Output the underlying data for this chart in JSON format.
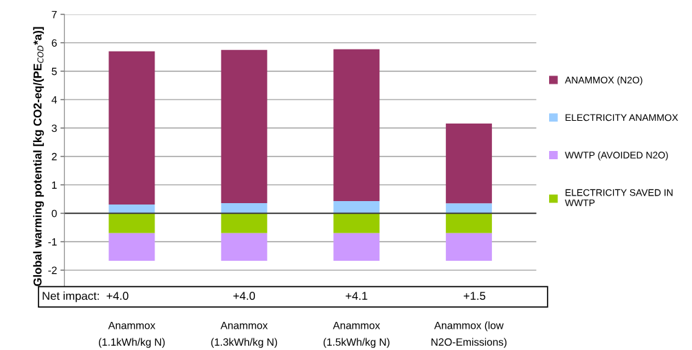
{
  "chart_data": {
    "type": "bar",
    "stacked": true,
    "ylabel": "Global warming potential [kg CO2-eq/(PE$_{COD}$*a)]",
    "categories": [
      "Anammox\n(1.1kWh/kg N)",
      "Anammox\n(1.3kWh/kg N)",
      "Anammox\n(1.5kWh/kg N)",
      "Anammox (low\nN2O-Emissions)"
    ],
    "series": [
      {
        "name": "ELECTRICITY ANAMMOX",
        "color": "#99ccff",
        "values": [
          0.31,
          0.36,
          0.43,
          0.35
        ]
      },
      {
        "name": "ANAMMOX (N2O)",
        "color": "#993366",
        "values": [
          5.39,
          5.39,
          5.34,
          2.81
        ]
      },
      {
        "name": "ELECTRICITY SAVED IN WWTP",
        "color": "#99cc00",
        "values": [
          -0.7,
          -0.7,
          -0.7,
          -0.7
        ]
      },
      {
        "name": "WWTP (AVOIDED N2O)",
        "color": "#cc99ff",
        "values": [
          -0.97,
          -0.97,
          -0.97,
          -0.97
        ]
      }
    ],
    "ylim": [
      -3,
      7
    ],
    "yticks": [
      {
        "value": -3,
        "label": null
      },
      -2,
      -1,
      0,
      1,
      2,
      3,
      4,
      5,
      6,
      7
    ],
    "ref_lines": [
      {
        "axis": "y",
        "value": 0,
        "color": "#404040"
      }
    ],
    "annotations": [
      "Net impact:  +4.0",
      "+4.0",
      "+4.1",
      "+1.5"
    ],
    "grid": "y",
    "legend": "right"
  }
}
